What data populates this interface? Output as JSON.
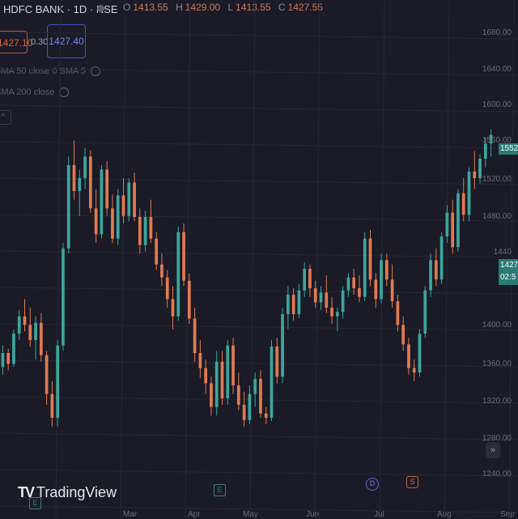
{
  "header": {
    "symbol": "HDFC BANK · 1D · NSE",
    "ohlc": [
      {
        "k": "O",
        "v": "1413.55"
      },
      {
        "k": "H",
        "v": "1429.00"
      },
      {
        "k": "L",
        "v": "1413.55"
      },
      {
        "k": "C",
        "v": "1427.55"
      }
    ]
  },
  "trade": {
    "sell": "1427.10",
    "spread": "0.30",
    "buy": "1427.40"
  },
  "indicators": [
    "SMA 50 close 0 SMA 5",
    "SMA 200 close"
  ],
  "price_axis": [
    "1680.00",
    "1640.00",
    "1600.00",
    "1560.00",
    "1520.00",
    "1480.00",
    "1440",
    "1400.00",
    "1360.00",
    "1320.00",
    "1280.00",
    "1240.00"
  ],
  "price_tags": {
    "last": "1552.5",
    "bid_1": "1427",
    "bid_2": "02:5"
  },
  "time_axis": [
    "Mar",
    "Apr",
    "May",
    "Jun",
    "Jul",
    "Aug",
    "Sep"
  ],
  "brand": {
    "mark": "TV",
    "name": "TradingView"
  },
  "events": {
    "earnings": "E",
    "dividend": "D",
    "split": "S"
  },
  "goto_icon": "»",
  "colors": {
    "up": "#3da59c",
    "down": "#e07a52",
    "background": "#1a1b26",
    "grid": "#262837"
  },
  "chart_data": {
    "type": "candlestick",
    "interval": "1D",
    "ylim": [
      1240,
      1690
    ],
    "x": [
      "Mar",
      "Apr",
      "May",
      "Jun",
      "Jul",
      "Aug",
      "Sep"
    ],
    "candles": [
      [
        1365,
        1385,
        1358,
        1378
      ],
      [
        1378,
        1382,
        1362,
        1368
      ],
      [
        1368,
        1400,
        1365,
        1396
      ],
      [
        1396,
        1418,
        1390,
        1412
      ],
      [
        1412,
        1428,
        1398,
        1404
      ],
      [
        1404,
        1420,
        1384,
        1390
      ],
      [
        1390,
        1412,
        1372,
        1406
      ],
      [
        1406,
        1415,
        1370,
        1376
      ],
      [
        1376,
        1380,
        1330,
        1340
      ],
      [
        1340,
        1352,
        1310,
        1318
      ],
      [
        1318,
        1390,
        1310,
        1385
      ],
      [
        1385,
        1480,
        1380,
        1475
      ],
      [
        1475,
        1560,
        1470,
        1552
      ],
      [
        1552,
        1575,
        1520,
        1528
      ],
      [
        1528,
        1548,
        1505,
        1540
      ],
      [
        1540,
        1568,
        1530,
        1560
      ],
      [
        1560,
        1566,
        1508,
        1512
      ],
      [
        1512,
        1530,
        1480,
        1488
      ],
      [
        1488,
        1552,
        1484,
        1548
      ],
      [
        1548,
        1556,
        1505,
        1512
      ],
      [
        1512,
        1525,
        1480,
        1484
      ],
      [
        1484,
        1530,
        1478,
        1524
      ],
      [
        1524,
        1540,
        1498,
        1505
      ],
      [
        1505,
        1540,
        1500,
        1536
      ],
      [
        1536,
        1545,
        1500,
        1504
      ],
      [
        1504,
        1512,
        1470,
        1478
      ],
      [
        1478,
        1510,
        1472,
        1504
      ],
      [
        1504,
        1520,
        1480,
        1484
      ],
      [
        1484,
        1490,
        1455,
        1460
      ],
      [
        1460,
        1470,
        1440,
        1448
      ],
      [
        1448,
        1455,
        1420,
        1428
      ],
      [
        1428,
        1440,
        1400,
        1412
      ],
      [
        1412,
        1495,
        1408,
        1490
      ],
      [
        1490,
        1498,
        1440,
        1445
      ],
      [
        1445,
        1452,
        1405,
        1410
      ],
      [
        1410,
        1420,
        1370,
        1378
      ],
      [
        1378,
        1390,
        1355,
        1364
      ],
      [
        1364,
        1372,
        1340,
        1350
      ],
      [
        1350,
        1356,
        1320,
        1328
      ],
      [
        1328,
        1380,
        1320,
        1370
      ],
      [
        1370,
        1380,
        1330,
        1336
      ],
      [
        1336,
        1390,
        1330,
        1385
      ],
      [
        1385,
        1392,
        1340,
        1348
      ],
      [
        1348,
        1360,
        1325,
        1330
      ],
      [
        1330,
        1342,
        1310,
        1316
      ],
      [
        1316,
        1348,
        1312,
        1340
      ],
      [
        1340,
        1360,
        1328,
        1354
      ],
      [
        1354,
        1362,
        1318,
        1322
      ],
      [
        1322,
        1328,
        1312,
        1318
      ],
      [
        1318,
        1390,
        1315,
        1384
      ],
      [
        1384,
        1392,
        1350,
        1356
      ],
      [
        1356,
        1420,
        1350,
        1414
      ],
      [
        1414,
        1440,
        1400,
        1432
      ],
      [
        1432,
        1438,
        1408,
        1414
      ],
      [
        1414,
        1442,
        1410,
        1436
      ],
      [
        1436,
        1462,
        1430,
        1456
      ],
      [
        1456,
        1460,
        1430,
        1438
      ],
      [
        1438,
        1445,
        1420,
        1425
      ],
      [
        1425,
        1440,
        1418,
        1434
      ],
      [
        1434,
        1450,
        1415,
        1420
      ],
      [
        1420,
        1430,
        1405,
        1412
      ],
      [
        1412,
        1420,
        1398,
        1416
      ],
      [
        1416,
        1440,
        1410,
        1436
      ],
      [
        1436,
        1452,
        1430,
        1448
      ],
      [
        1448,
        1456,
        1432,
        1438
      ],
      [
        1438,
        1450,
        1425,
        1430
      ],
      [
        1430,
        1490,
        1426,
        1484
      ],
      [
        1484,
        1492,
        1440,
        1446
      ],
      [
        1446,
        1452,
        1420,
        1428
      ],
      [
        1428,
        1470,
        1424,
        1464
      ],
      [
        1464,
        1470,
        1440,
        1446
      ],
      [
        1446,
        1460,
        1420,
        1426
      ],
      [
        1426,
        1432,
        1398,
        1404
      ],
      [
        1404,
        1412,
        1380,
        1386
      ],
      [
        1386,
        1392,
        1358,
        1364
      ],
      [
        1364,
        1372,
        1352,
        1360
      ],
      [
        1360,
        1400,
        1356,
        1396
      ],
      [
        1396,
        1440,
        1392,
        1436
      ],
      [
        1436,
        1470,
        1430,
        1464
      ],
      [
        1464,
        1475,
        1440,
        1446
      ],
      [
        1446,
        1490,
        1442,
        1486
      ],
      [
        1486,
        1515,
        1480,
        1508
      ],
      [
        1508,
        1520,
        1470,
        1476
      ],
      [
        1476,
        1530,
        1472,
        1526
      ],
      [
        1526,
        1540,
        1500,
        1506
      ],
      [
        1506,
        1550,
        1500,
        1546
      ],
      [
        1546,
        1565,
        1530,
        1540
      ],
      [
        1540,
        1562,
        1535,
        1558
      ],
      [
        1558,
        1578,
        1550,
        1572
      ],
      [
        1572,
        1585,
        1560,
        1580
      ]
    ]
  }
}
